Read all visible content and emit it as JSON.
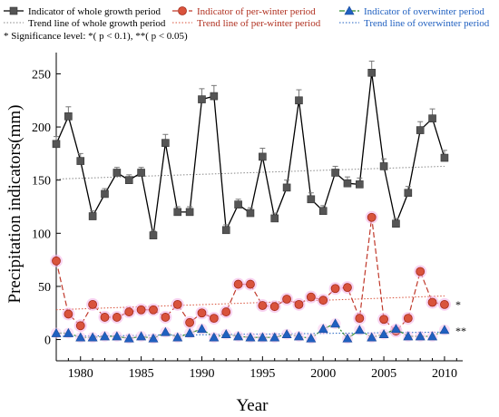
{
  "chart_data": {
    "type": "line",
    "xlabel": "Year",
    "ylabel": "Precipitation indicators(mm)",
    "xlim": [
      1978,
      2011.5
    ],
    "ylim": [
      -20,
      270
    ],
    "x_ticks": [
      1980,
      1985,
      1990,
      1995,
      2000,
      2005,
      2010
    ],
    "y_ticks": [
      0,
      50,
      100,
      150,
      200,
      250
    ],
    "x_tick_labels": [
      "1980",
      "1985",
      "1990",
      "1995",
      "2000",
      "2005",
      "2010"
    ],
    "y_tick_labels": [
      "0",
      "50",
      "100",
      "150",
      "200",
      "250"
    ],
    "x": [
      1978,
      1979,
      1980,
      1981,
      1982,
      1983,
      1984,
      1985,
      1986,
      1987,
      1988,
      1989,
      1990,
      1991,
      1992,
      1993,
      1994,
      1995,
      1996,
      1997,
      1998,
      1999,
      2000,
      2001,
      2002,
      2003,
      2004,
      2005,
      2006,
      2007,
      2008,
      2009,
      2010
    ],
    "series": [
      {
        "name": "Indicator of whole growth period",
        "color": "#000000",
        "marker_color": "#555555",
        "marker": "square",
        "line_style": "solid",
        "values": [
          184,
          210,
          168,
          116,
          137,
          157,
          150,
          157,
          98,
          185,
          120,
          120,
          226,
          229,
          103,
          127,
          119,
          172,
          114,
          143,
          225,
          132,
          121,
          157,
          147,
          146,
          251,
          163,
          109,
          138,
          197,
          208,
          171
        ],
        "errors": [
          7,
          9,
          7,
          5,
          5,
          5,
          5,
          5,
          4,
          8,
          5,
          5,
          10,
          10,
          5,
          5,
          5,
          8,
          5,
          7,
          10,
          6,
          5,
          6,
          6,
          6,
          11,
          7,
          5,
          6,
          8,
          9,
          7
        ]
      },
      {
        "name": "Indicator of  per-winter period",
        "color": "#c0392b",
        "marker_color": "#d9533c",
        "marker": "circle",
        "line_style": "dashed",
        "values": [
          74,
          24,
          13,
          33,
          21,
          21,
          26,
          28,
          28,
          21,
          33,
          16,
          25,
          20,
          26,
          52,
          52,
          32,
          31,
          38,
          33,
          40,
          37,
          48,
          49,
          20,
          115,
          19,
          8,
          20,
          64,
          35,
          33
        ],
        "errors": [
          0,
          0,
          0,
          0,
          0,
          0,
          0,
          0,
          0,
          0,
          0,
          0,
          0,
          0,
          0,
          0,
          0,
          0,
          0,
          0,
          0,
          0,
          0,
          0,
          0,
          0,
          2,
          0,
          0,
          0,
          2,
          0,
          0
        ]
      },
      {
        "name": "Indicator of  overwinter period",
        "color": "#2e8b2e",
        "marker_color": "#2060c0",
        "marker": "triangle",
        "line_style": "dashdot",
        "values": [
          6,
          6,
          2,
          2,
          3,
          3,
          1,
          3,
          1,
          7,
          2,
          6,
          10,
          2,
          5,
          3,
          2,
          2,
          2,
          5,
          3,
          1,
          10,
          15,
          1,
          9,
          2,
          5,
          10,
          3,
          3,
          3,
          9
        ],
        "errors": [
          0,
          0,
          0,
          0,
          0,
          0,
          0,
          0,
          0,
          0,
          0,
          0,
          0,
          0,
          0,
          0,
          0,
          0,
          0,
          0,
          0,
          0,
          0,
          0,
          0,
          0,
          0,
          0,
          0,
          0,
          0,
          0,
          0
        ]
      }
    ],
    "trend_lines": [
      {
        "name": "Trend line of whole growth period",
        "color": "#888888",
        "style": "dotted",
        "start": [
          1978,
          151
        ],
        "end": [
          2010,
          163
        ]
      },
      {
        "name": "Trend line of per-winter period",
        "color": "#d9533c",
        "style": "dotted",
        "start": [
          1978,
          28
        ],
        "end": [
          2010,
          41
        ]
      },
      {
        "name": "Trend line of overwinter period",
        "color": "#2060c0",
        "style": "dotted",
        "start": [
          1978,
          3
        ],
        "end": [
          2010,
          7
        ]
      }
    ],
    "annotations": [
      {
        "text": "*",
        "x": 2011.2,
        "y": 33
      },
      {
        "text": "**",
        "x": 2011.2,
        "y": 8
      }
    ],
    "significance_note": "* Significance level: *( p < 0.1), **( p < 0.05)",
    "legend_placement": "top"
  }
}
